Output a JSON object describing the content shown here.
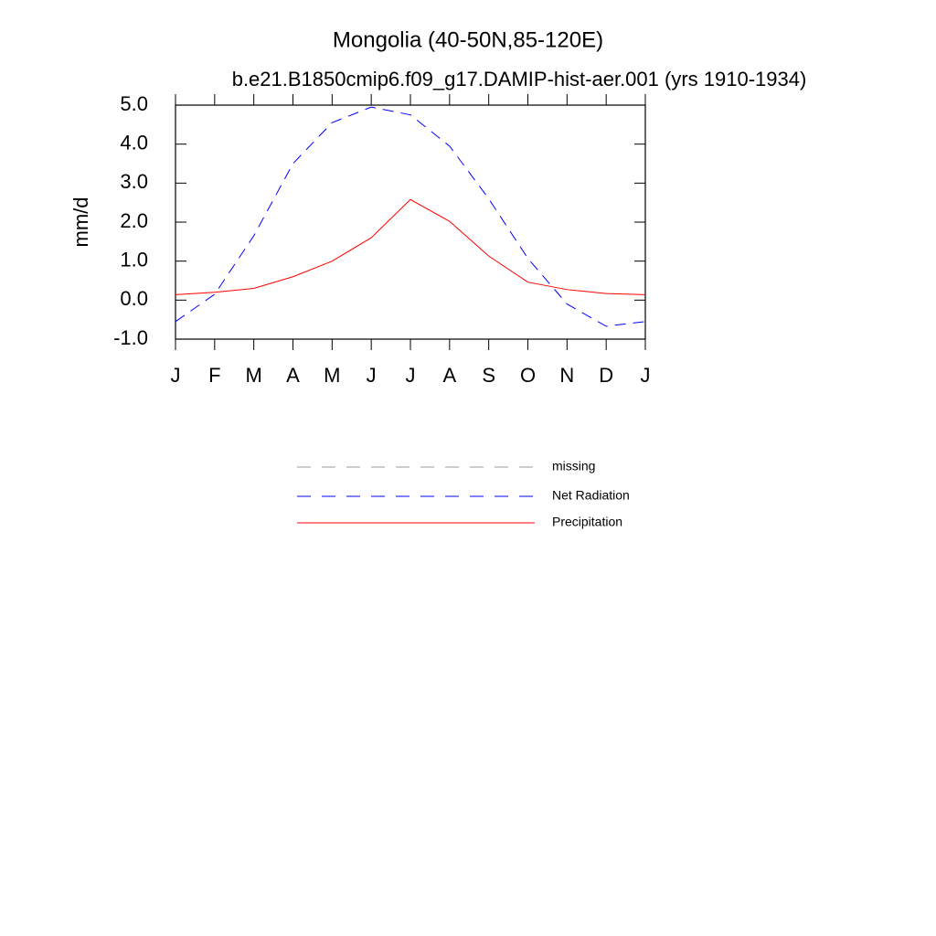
{
  "chart_data": {
    "type": "line",
    "title": "Mongolia (40-50N,85-120E)",
    "subtitle": "b.e21.B1850cmip6.f09_g17.DAMIP-hist-aer.001 (yrs 1910-1934)",
    "y_label": "mm/d",
    "categories": [
      "J",
      "F",
      "M",
      "A",
      "M",
      "J",
      "J",
      "A",
      "S",
      "O",
      "N",
      "D",
      "J"
    ],
    "series": [
      {
        "name": "missing",
        "color": "#999999",
        "dash": true,
        "values": [
          null,
          null,
          null,
          null,
          null,
          null,
          null,
          null,
          null,
          null,
          null,
          null,
          null
        ]
      },
      {
        "name": "Net Radiation",
        "color": "#0000ff",
        "dash": true,
        "values": [
          -0.55,
          0.15,
          1.65,
          3.5,
          4.55,
          4.95,
          4.75,
          3.95,
          2.6,
          1.07,
          -0.1,
          -0.67,
          -0.55
        ]
      },
      {
        "name": "Precipitation",
        "color": "#ff0000",
        "dash": false,
        "values": [
          0.14,
          0.2,
          0.3,
          0.6,
          1.0,
          1.6,
          2.58,
          2.02,
          1.13,
          0.46,
          0.27,
          0.17,
          0.14
        ]
      }
    ],
    "ylim": [
      -1,
      5
    ],
    "yticks": [
      {
        "value": -1,
        "label": "-1.0"
      },
      {
        "value": 0,
        "label": "0.0"
      },
      {
        "value": 1,
        "label": "1.0"
      },
      {
        "value": 2,
        "label": "2.0"
      },
      {
        "value": 3,
        "label": "3.0"
      },
      {
        "value": 4,
        "label": "4.0"
      },
      {
        "value": 5,
        "label": "5.0"
      }
    ]
  }
}
